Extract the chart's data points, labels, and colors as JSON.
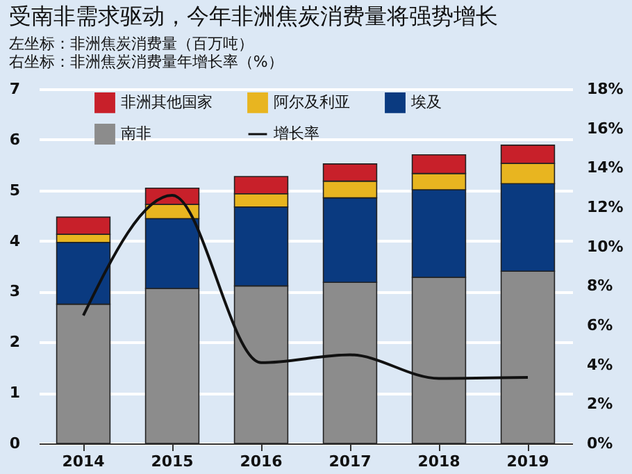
{
  "chart_data": {
    "type": "bar",
    "title": "受南非需求驱动，今年非洲焦炭消费量将强势增长",
    "annotations": [
      "左坐标：非洲焦炭消费量（百万吨）",
      "右坐标：非洲焦炭消费量年增长率（%）"
    ],
    "categories": [
      "2014",
      "2015",
      "2016",
      "2017",
      "2018",
      "2019"
    ],
    "stacked": true,
    "series": [
      {
        "name": "南非",
        "color": "#8c8c8c",
        "values": [
          2.75,
          3.06,
          3.11,
          3.18,
          3.28,
          3.4
        ]
      },
      {
        "name": "埃及",
        "color": "#0a3a80",
        "values": [
          1.22,
          1.38,
          1.56,
          1.67,
          1.73,
          1.73
        ]
      },
      {
        "name": "阿尔及利亚",
        "color": "#e8b520",
        "values": [
          0.16,
          0.28,
          0.26,
          0.33,
          0.32,
          0.4
        ]
      },
      {
        "name": "非洲其他国家",
        "color": "#c8202a",
        "values": [
          0.34,
          0.32,
          0.34,
          0.34,
          0.37,
          0.36
        ]
      },
      {
        "name": "增长率",
        "type": "line",
        "axis": "y2",
        "color": "#111111",
        "values": [
          6.5,
          12.6,
          4.1,
          4.5,
          3.3,
          3.35
        ]
      }
    ],
    "ylim": [
      0,
      7
    ],
    "yticks": [
      0,
      1,
      2,
      3,
      4,
      5,
      6,
      7
    ],
    "y2lim": [
      0,
      18
    ],
    "y2ticks": [
      {
        "value": 0,
        "label": "0%"
      },
      {
        "value": 2,
        "label": "2%"
      },
      {
        "value": 4,
        "label": "4%"
      },
      {
        "value": 6,
        "label": "6%"
      },
      {
        "value": 8,
        "label": "8%"
      },
      {
        "value": 10,
        "label": "10%"
      },
      {
        "value": 12,
        "label": "12%"
      },
      {
        "value": 14,
        "label": "14%"
      },
      {
        "value": 16,
        "label": "16%"
      },
      {
        "value": 18,
        "label": "18%"
      }
    ],
    "grid": "y",
    "legend": "top"
  }
}
